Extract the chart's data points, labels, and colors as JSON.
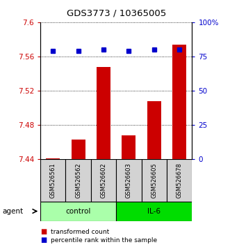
{
  "title": "GDS3773 / 10365005",
  "samples": [
    "GSM526561",
    "GSM526562",
    "GSM526602",
    "GSM526603",
    "GSM526605",
    "GSM526678"
  ],
  "transformed_counts": [
    7.441,
    7.463,
    7.548,
    7.468,
    7.508,
    7.574
  ],
  "percentile_ranks": [
    79,
    79,
    80,
    79,
    80,
    80
  ],
  "ylim_left": [
    7.44,
    7.6
  ],
  "ylim_right": [
    0,
    100
  ],
  "yticks_left": [
    7.44,
    7.48,
    7.52,
    7.56,
    7.6
  ],
  "yticks_right": [
    0,
    25,
    50,
    75,
    100
  ],
  "ytick_labels_right": [
    "0",
    "25",
    "50",
    "75",
    "100%"
  ],
  "bar_color": "#CC0000",
  "dot_color": "#0000CC",
  "agent_label": "agent",
  "legend_items": [
    {
      "color": "#CC0000",
      "label": "transformed count"
    },
    {
      "color": "#0000CC",
      "label": "percentile rank within the sample"
    }
  ],
  "sample_box_color": "#D3D3D3",
  "control_color": "#AAFFAA",
  "il6_color": "#00DD00",
  "base_value": 7.44
}
